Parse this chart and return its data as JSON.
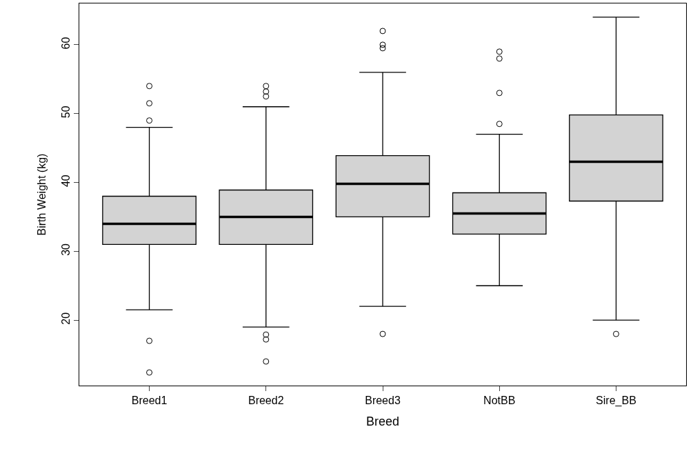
{
  "chart_data": {
    "type": "box",
    "xlabel": "Breed",
    "ylabel": "Birth Weight (kg)",
    "categories": [
      "Breed1",
      "Breed2",
      "Breed3",
      "NotBB",
      "Sire_BB"
    ],
    "color": "#d3d3d3",
    "boxes": [
      {
        "low": 21.5,
        "q1": 31,
        "median": 34,
        "q3": 38,
        "high": 48,
        "outliers": [
          54,
          51.5,
          49,
          17,
          12.4
        ]
      },
      {
        "low": 19,
        "q1": 31,
        "median": 35,
        "q3": 38.9,
        "high": 51,
        "outliers": [
          54,
          53.2,
          52.5,
          17.9,
          17.2,
          14
        ]
      },
      {
        "low": 22,
        "q1": 35,
        "median": 39.8,
        "q3": 43.9,
        "high": 56,
        "outliers": [
          62,
          60,
          59.5,
          18
        ]
      },
      {
        "low": 25,
        "q1": 32.5,
        "median": 35.5,
        "q3": 38.5,
        "high": 47,
        "outliers": [
          59,
          58,
          53,
          48.5
        ]
      },
      {
        "low": 20,
        "q1": 37.3,
        "median": 43,
        "q3": 49.8,
        "high": 64,
        "outliers": [
          18
        ]
      }
    ],
    "ylim": [
      10.5,
      66
    ],
    "yticks": [
      20,
      30,
      40,
      50,
      60
    ],
    "marker": "circle"
  }
}
